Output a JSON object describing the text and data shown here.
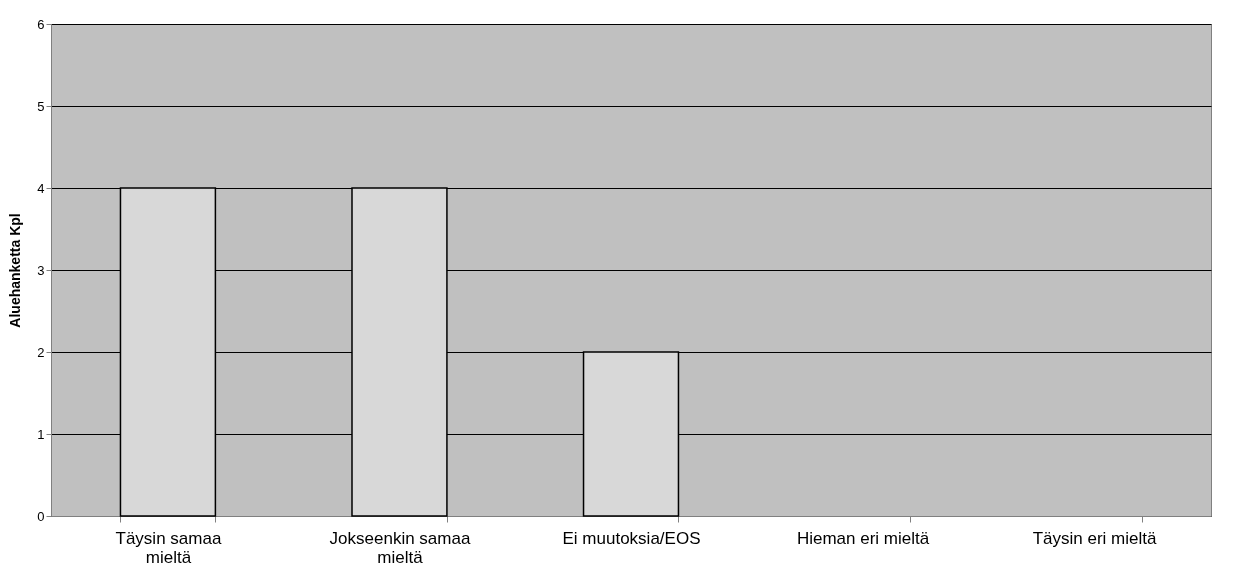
{
  "chart_data": {
    "type": "bar",
    "ylabel": "Aluehanketta Kpl",
    "categories": [
      "Täysin samaa mieltä",
      "Jokseenkin samaa mieltä",
      "Ei muutoksia/EOS",
      "Hieman eri mieltä",
      "Täysin eri mieltä"
    ],
    "values": [
      4,
      4,
      2,
      0,
      0
    ],
    "color": "#d8d8d8",
    "ylim": [
      0,
      6
    ],
    "yticks": [
      0,
      1,
      2,
      3,
      4,
      5,
      6
    ],
    "grid": "y"
  }
}
